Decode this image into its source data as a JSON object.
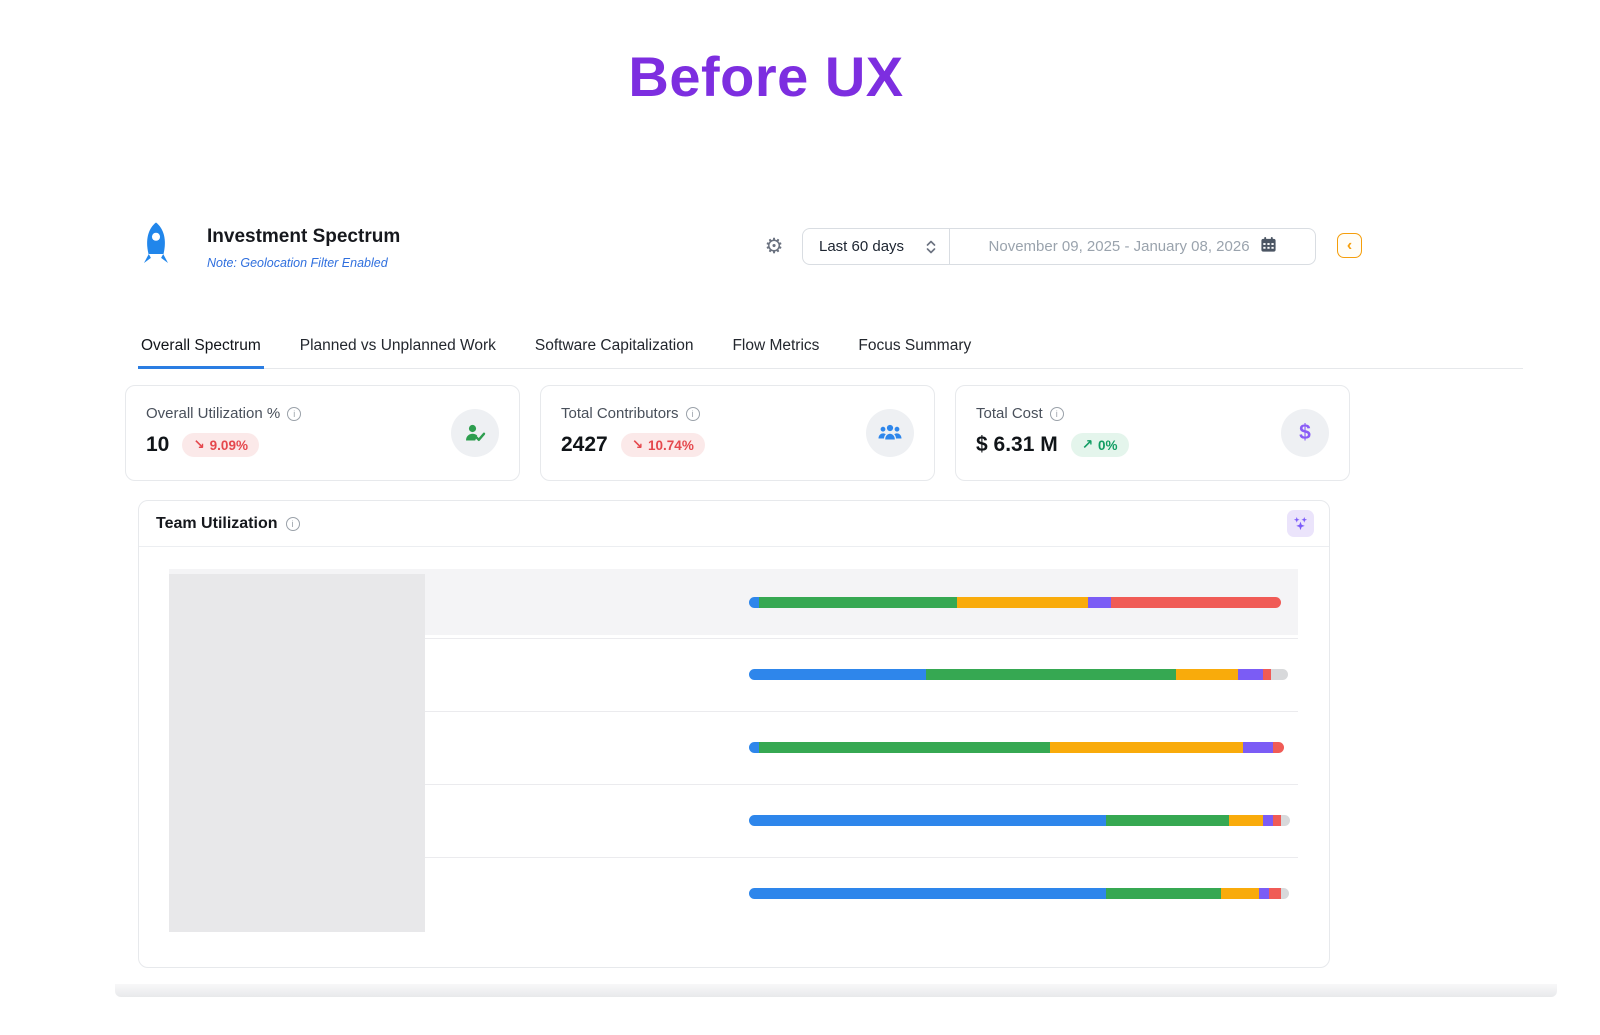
{
  "page": {
    "title": "Before UX"
  },
  "header": {
    "title": "Investment Spectrum",
    "note": "Note: Geolocation Filter Enabled",
    "range_selected": "Last 60 days",
    "date_range": "November 09, 2025 - January 08, 2026",
    "collapse_glyph": "‹",
    "gear_glyph": "⚙"
  },
  "tabs": [
    {
      "label": "Overall Spectrum",
      "active": true
    },
    {
      "label": "Planned vs Unplanned Work",
      "active": false
    },
    {
      "label": "Software Capitalization",
      "active": false
    },
    {
      "label": "Flow Metrics",
      "active": false
    },
    {
      "label": "Focus Summary",
      "active": false
    }
  ],
  "cards": [
    {
      "label": "Overall Utilization %",
      "value": "10",
      "delta": "9.09%",
      "trend": "down",
      "trend_glyph": "↘",
      "icon": "person-check-icon",
      "icon_color": "#2E9E4F"
    },
    {
      "label": "Total Contributors",
      "value": "2427",
      "delta": "10.74%",
      "trend": "down",
      "trend_glyph": "↘",
      "icon": "people-group-icon",
      "icon_color": "#2E86EB"
    },
    {
      "label": "Total Cost",
      "value": "$ 6.31 M",
      "delta": "0%",
      "trend": "up",
      "trend_glyph": "↗",
      "icon": "dollar-icon",
      "icon_color": "#8A5CF6"
    }
  ],
  "team_utilization": {
    "title": "Team Utilization"
  },
  "chart_data": {
    "type": "bar",
    "orientation": "horizontal-stacked",
    "title": "Team Utilization",
    "note": "Row labels are hidden behind a gray redaction block; no legend shown. Values estimated as % of track width.",
    "labels_hidden": true,
    "categories": [
      "",
      "",
      "",
      "",
      ""
    ],
    "colors": {
      "blue": "#2E86EB",
      "green": "#36A852",
      "amber": "#F9AB0B",
      "purple": "#7B5CF5",
      "red": "#F05B56",
      "gray": "#D8D9DB"
    },
    "rows": [
      {
        "highlighted": true,
        "segments": [
          {
            "name": "blue",
            "pct": 1.9
          },
          {
            "name": "green",
            "pct": 36.7
          },
          {
            "name": "amber",
            "pct": 24.1
          },
          {
            "name": "purple",
            "pct": 4.4
          },
          {
            "name": "red",
            "pct": 31.5
          }
        ]
      },
      {
        "highlighted": false,
        "segments": [
          {
            "name": "blue",
            "pct": 32.8
          },
          {
            "name": "green",
            "pct": 46.3
          },
          {
            "name": "amber",
            "pct": 11.5
          },
          {
            "name": "purple",
            "pct": 4.6
          },
          {
            "name": "red",
            "pct": 1.5
          },
          {
            "name": "gray",
            "pct": 3.1
          }
        ]
      },
      {
        "highlighted": false,
        "segments": [
          {
            "name": "blue",
            "pct": 1.9
          },
          {
            "name": "green",
            "pct": 53.9
          },
          {
            "name": "amber",
            "pct": 35.7
          },
          {
            "name": "purple",
            "pct": 5.6
          },
          {
            "name": "red",
            "pct": 2.0
          }
        ]
      },
      {
        "highlighted": false,
        "segments": [
          {
            "name": "blue",
            "pct": 66.1
          },
          {
            "name": "green",
            "pct": 22.8
          },
          {
            "name": "amber",
            "pct": 6.3
          },
          {
            "name": "purple",
            "pct": 1.9
          },
          {
            "name": "red",
            "pct": 1.5
          },
          {
            "name": "gray",
            "pct": 1.5
          }
        ]
      },
      {
        "highlighted": false,
        "segments": [
          {
            "name": "blue",
            "pct": 66.1
          },
          {
            "name": "green",
            "pct": 21.3
          },
          {
            "name": "amber",
            "pct": 7.0
          },
          {
            "name": "purple",
            "pct": 1.9
          },
          {
            "name": "red",
            "pct": 2.2
          },
          {
            "name": "gray",
            "pct": 1.5
          }
        ]
      }
    ]
  },
  "theme": {
    "title_purple": "#7D2EE0",
    "tab_active_blue": "#2A7DE2",
    "note_blue": "#2F6FDE",
    "badge_down_red": "#E5484D",
    "badge_up_green": "#129D64",
    "collapse_orange": "#F59E0B",
    "sparkle_purple": "#7C5CFA"
  }
}
